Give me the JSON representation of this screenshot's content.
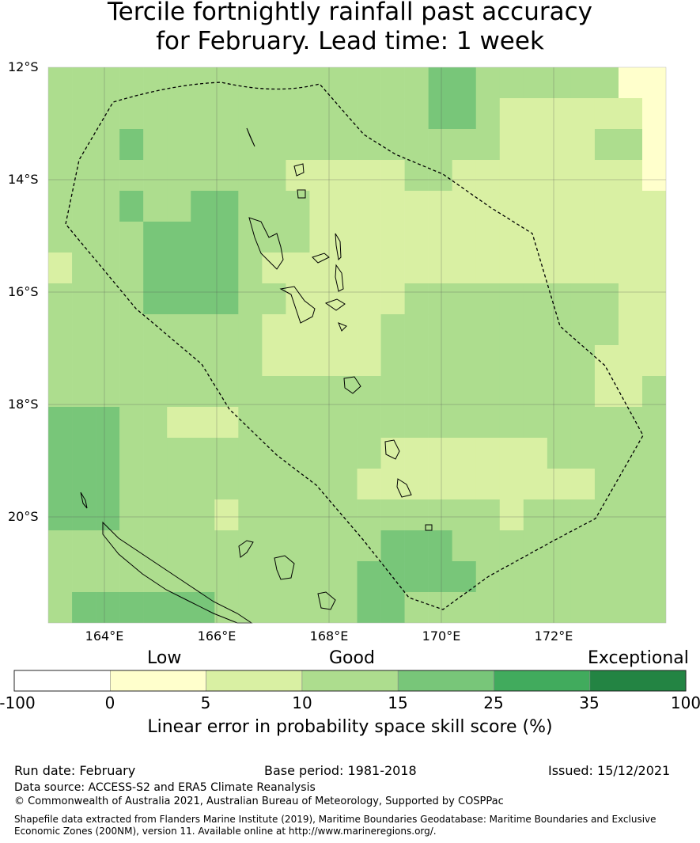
{
  "title": {
    "line1": "Tercile fortnightly rainfall past accuracy",
    "line2": "for February. Lead time: 1 week"
  },
  "map": {
    "lat_labels": [
      "12°S",
      "14°S",
      "16°S",
      "18°S",
      "20°S"
    ],
    "lon_labels": [
      "164°E",
      "166°E",
      "168°E",
      "170°E",
      "172°E"
    ],
    "grid_note": "skill cells classified by colourbar bin"
  },
  "legend": {
    "categories": [
      "Low",
      "Good",
      "Exceptional"
    ],
    "ticks": [
      "-100",
      "0",
      "5",
      "10",
      "15",
      "25",
      "35",
      "100"
    ],
    "bin_colors": [
      "#ffffff",
      "#ffffcc",
      "#d9f0a3",
      "#addd8e",
      "#78c679",
      "#41ab5d",
      "#238443"
    ],
    "title": "Linear error in probability space skill score (%)"
  },
  "footer": {
    "run_date": "Run date: February",
    "base_period": "Base period: 1981-2018",
    "issued": "Issued: 15/12/2021",
    "data_source": "Data source: ACCESS-S2 and ERA5 Climate Reanalysis",
    "copyright": "© Commonwealth of Australia 2021, Australian Bureau of Meteorology, Supported by COSPPac",
    "shapefile_1": "Shapefile data extracted from Flanders Marine Institute (2019), Maritime Boundaries Geodatabase: Maritime Boundaries and Exclusive",
    "shapefile_2": "Economic Zones (200NM), version 11. Available online at http://www.marineregions.org/."
  }
}
